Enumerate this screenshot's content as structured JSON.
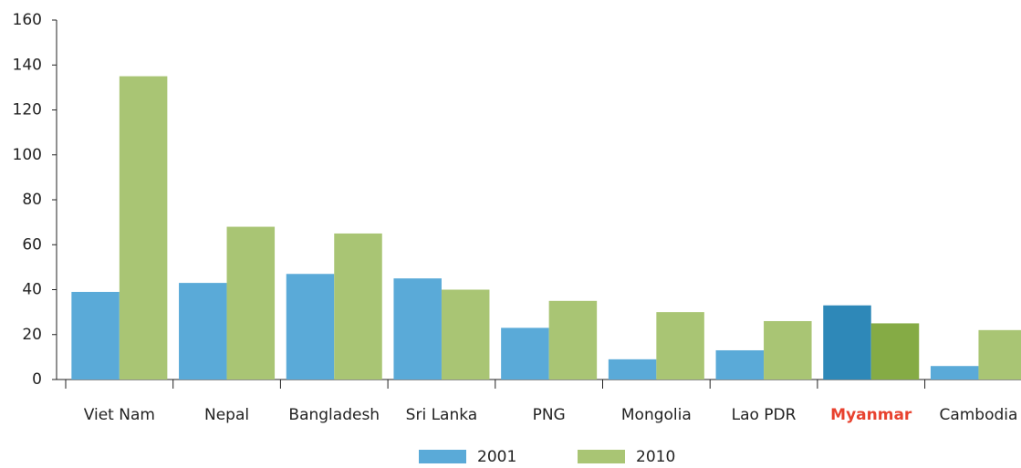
{
  "chart_data": {
    "type": "bar",
    "categories": [
      "Viet Nam",
      "Nepal",
      "Bangladesh",
      "Sri Lanka",
      "PNG",
      "Mongolia",
      "Lao PDR",
      "Myanmar",
      "Cambodia"
    ],
    "series": [
      {
        "name": "2001",
        "color": "#5aaad8",
        "highlight_color": "#2e88b8",
        "values": [
          39,
          43,
          47,
          45,
          23,
          9,
          13,
          33,
          6
        ]
      },
      {
        "name": "2010",
        "color": "#a9c574",
        "highlight_color": "#85ab45",
        "values": [
          135,
          68,
          65,
          40,
          35,
          30,
          26,
          25,
          22
        ]
      }
    ],
    "highlight": "Myanmar",
    "highlight_label_color": "#e8422f",
    "ylim": [
      0,
      160
    ],
    "yticks": [
      0,
      20,
      40,
      60,
      80,
      100,
      120,
      140,
      160
    ],
    "grid": false,
    "legend": "bottom"
  }
}
